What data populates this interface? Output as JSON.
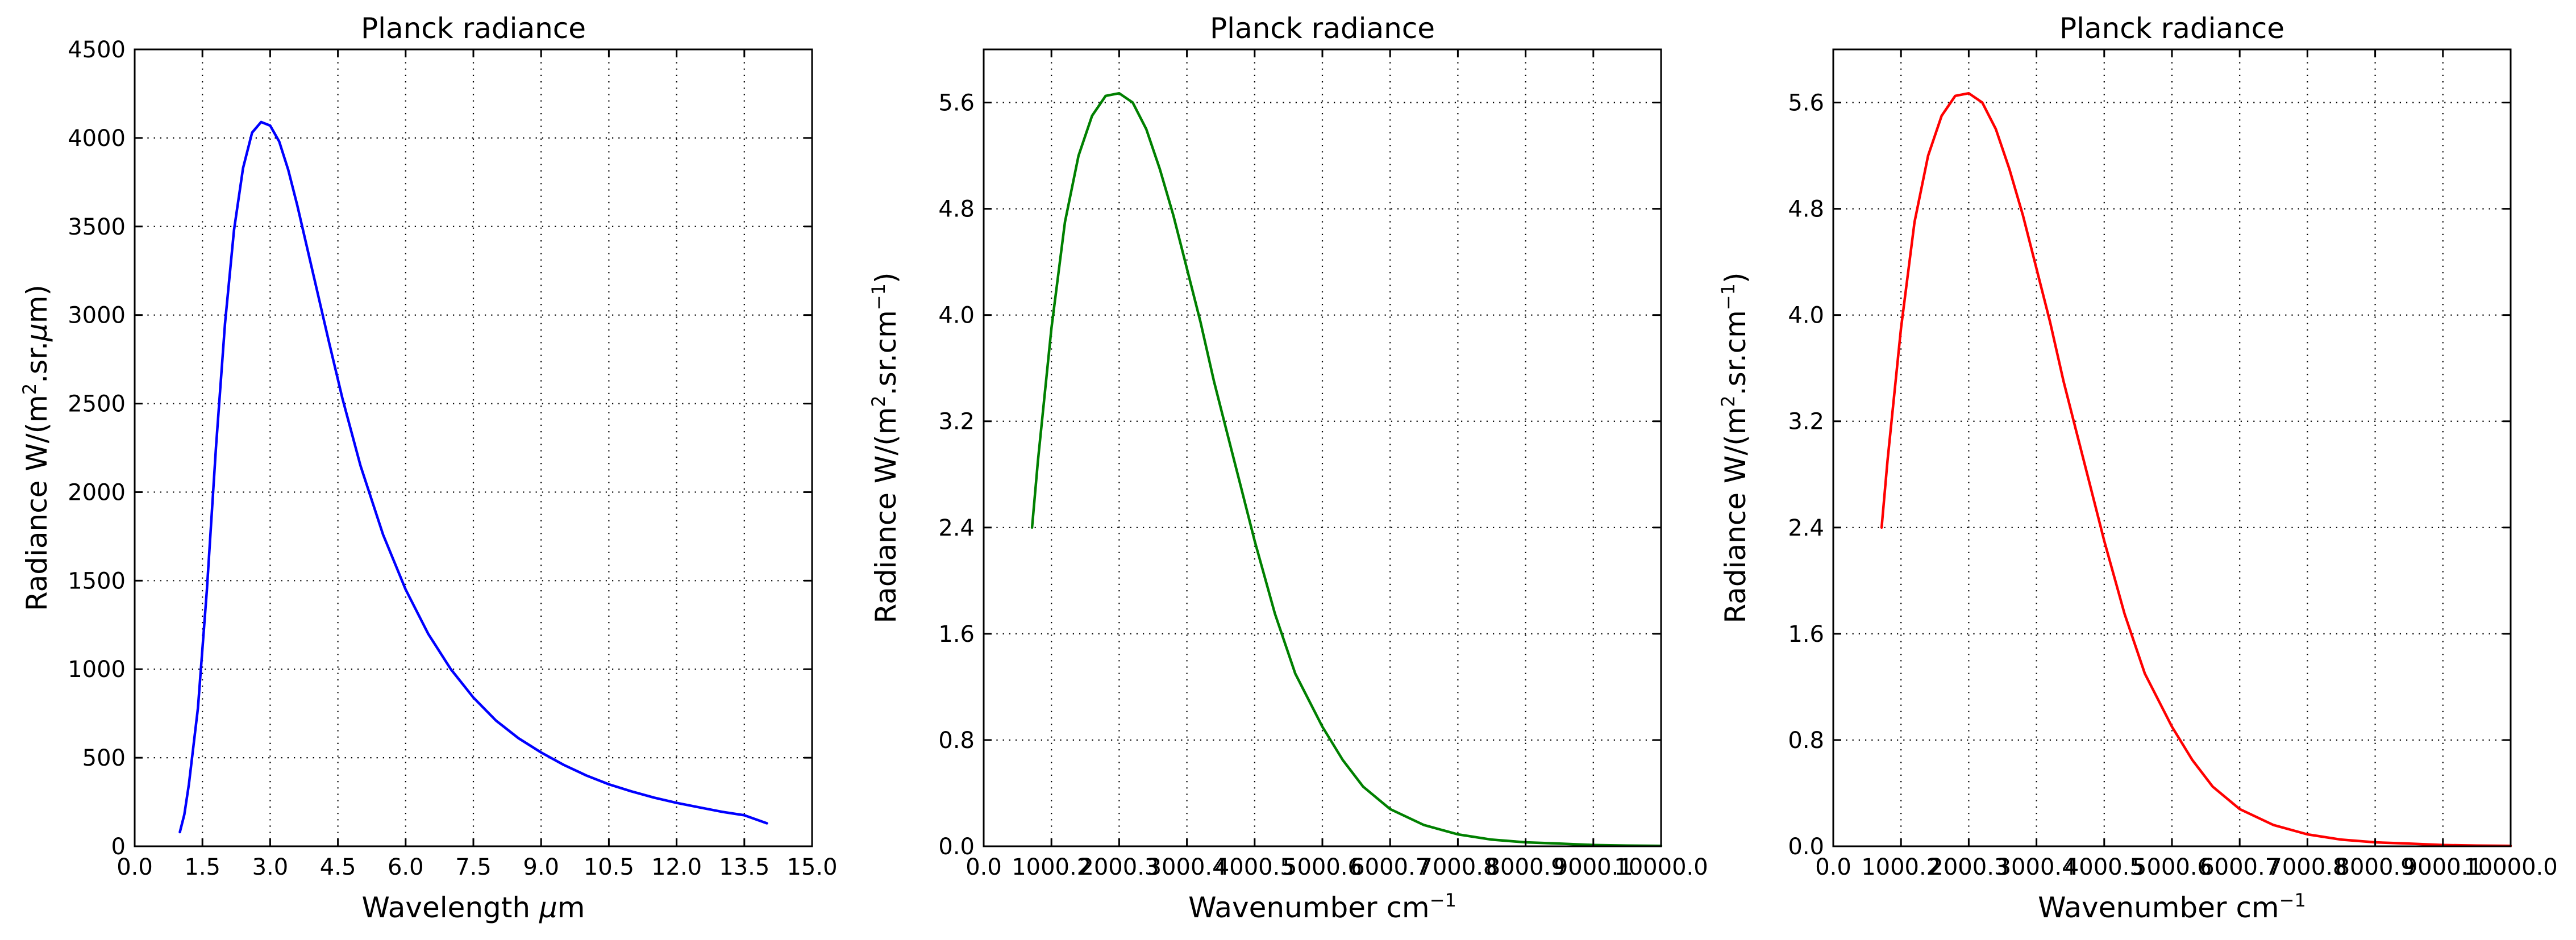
{
  "chart_data": [
    {
      "type": "line",
      "title": "Planck radiance",
      "xlabel": "Wavelength μm",
      "xlabel_parts": [
        "Wavelength ",
        "μ",
        "m"
      ],
      "ylabel": "Radiance W/(m2.sr.μm)",
      "ylabel_parts": [
        "Radiance W/(m",
        "2",
        ".sr.",
        "μ",
        "m)"
      ],
      "xlim": [
        0,
        15
      ],
      "ylim": [
        0,
        4500
      ],
      "xticks": [
        0,
        1.5,
        3,
        4.5,
        6,
        7.5,
        9,
        10.5,
        12,
        13.5,
        15
      ],
      "xtick_labels": [
        "0.0",
        "1.5",
        "3.0",
        "4.5",
        "6.0",
        "7.5",
        "9.0",
        "10.5",
        "12.0",
        "13.5",
        "15.0"
      ],
      "yticks": [
        0,
        500,
        1000,
        1500,
        2000,
        2500,
        3000,
        3500,
        4000,
        4500
      ],
      "ytick_labels": [
        "0",
        "500",
        "1000",
        "1500",
        "2000",
        "2500",
        "3000",
        "3500",
        "4000",
        "4500"
      ],
      "grid": true,
      "color": "#0000ff",
      "series": [
        {
          "x": [
            1.0,
            1.1,
            1.2,
            1.4,
            1.6,
            1.8,
            2.0,
            2.2,
            2.4,
            2.6,
            2.8,
            3.0,
            3.2,
            3.4,
            3.6,
            3.8,
            4.0,
            4.3,
            4.6,
            5.0,
            5.5,
            6.0,
            6.5,
            7.0,
            7.5,
            8.0,
            8.5,
            9.0,
            9.5,
            10.0,
            10.5,
            11.0,
            11.5,
            12.0,
            12.5,
            13.0,
            13.5,
            14.0
          ],
          "y": [
            80,
            180,
            350,
            780,
            1450,
            2250,
            2950,
            3480,
            3830,
            4030,
            4090,
            4070,
            3980,
            3820,
            3620,
            3400,
            3180,
            2850,
            2530,
            2150,
            1760,
            1450,
            1200,
            1000,
            840,
            710,
            610,
            530,
            460,
            400,
            350,
            310,
            275,
            245,
            220,
            195,
            175,
            130
          ]
        }
      ]
    },
    {
      "type": "line",
      "title": "Planck radiance",
      "xlabel": "Wavenumber cm−1",
      "xlabel_parts": [
        "Wavenumber cm",
        "−1"
      ],
      "ylabel": "Radiance W/(m2.sr.cm−1)",
      "ylabel_parts": [
        "Radiance W/(m",
        "2",
        ".sr.cm",
        "−1",
        ")"
      ],
      "xlim": [
        0,
        10000
      ],
      "ylim": [
        0,
        6
      ],
      "xticks": [
        0,
        1000,
        2000,
        3000,
        4000,
        5000,
        6000,
        7000,
        8000,
        9000,
        10000
      ],
      "xtick_labels": [
        "0.0",
        "1000.2",
        "2000.3",
        "3000.4",
        "4000.5",
        "5000.6",
        "6000.7",
        "7000.8",
        "8000.9",
        "9000.1",
        "10000.0"
      ],
      "yticks": [
        0,
        0.8,
        1.6,
        2.4,
        3.2,
        4.0,
        4.8,
        5.6
      ],
      "ytick_labels": [
        "0.0",
        "0.8",
        "1.6",
        "2.4",
        "3.2",
        "4.0",
        "4.8",
        "5.6"
      ],
      "grid": true,
      "color": "#008000",
      "series": [
        {
          "x": [
            714,
            800,
            1000,
            1200,
            1400,
            1600,
            1800,
            2000,
            2200,
            2400,
            2600,
            2800,
            3000,
            3200,
            3400,
            3600,
            3800,
            4000,
            4300,
            4600,
            5000,
            5300,
            5600,
            6000,
            6500,
            7000,
            7500,
            8000,
            8500,
            9000,
            9500,
            10000
          ],
          "y": [
            2.4,
            2.9,
            3.9,
            4.7,
            5.2,
            5.5,
            5.65,
            5.67,
            5.6,
            5.4,
            5.1,
            4.75,
            4.35,
            3.95,
            3.5,
            3.1,
            2.7,
            2.3,
            1.75,
            1.3,
            0.9,
            0.65,
            0.45,
            0.28,
            0.16,
            0.09,
            0.05,
            0.03,
            0.02,
            0.01,
            0.005,
            0.003
          ]
        }
      ]
    },
    {
      "type": "line",
      "title": "Planck radiance",
      "xlabel": "Wavenumber cm−1",
      "xlabel_parts": [
        "Wavenumber cm",
        "−1"
      ],
      "ylabel": "Radiance W/(m2.sr.cm−1)",
      "ylabel_parts": [
        "Radiance W/(m",
        "2",
        ".sr.cm",
        "−1",
        ")"
      ],
      "xlim": [
        0,
        10000
      ],
      "ylim": [
        0,
        6
      ],
      "xticks": [
        0,
        1000,
        2000,
        3000,
        4000,
        5000,
        6000,
        7000,
        8000,
        9000,
        10000
      ],
      "xtick_labels": [
        "0.0",
        "1000.2",
        "2000.3",
        "3000.4",
        "4000.5",
        "5000.6",
        "6000.7",
        "7000.8",
        "8000.9",
        "9000.1",
        "10000.0"
      ],
      "yticks": [
        0,
        0.8,
        1.6,
        2.4,
        3.2,
        4.0,
        4.8,
        5.6
      ],
      "ytick_labels": [
        "0.0",
        "0.8",
        "1.6",
        "2.4",
        "3.2",
        "4.0",
        "4.8",
        "5.6"
      ],
      "grid": true,
      "color": "#ff0000",
      "series": [
        {
          "x": [
            714,
            800,
            1000,
            1200,
            1400,
            1600,
            1800,
            2000,
            2200,
            2400,
            2600,
            2800,
            3000,
            3200,
            3400,
            3600,
            3800,
            4000,
            4300,
            4600,
            5000,
            5300,
            5600,
            6000,
            6500,
            7000,
            7500,
            8000,
            8500,
            9000,
            9500,
            10000
          ],
          "y": [
            2.4,
            2.9,
            3.9,
            4.7,
            5.2,
            5.5,
            5.65,
            5.67,
            5.6,
            5.4,
            5.1,
            4.75,
            4.35,
            3.95,
            3.5,
            3.1,
            2.7,
            2.3,
            1.75,
            1.3,
            0.9,
            0.65,
            0.45,
            0.28,
            0.16,
            0.09,
            0.05,
            0.03,
            0.02,
            0.01,
            0.005,
            0.003
          ]
        }
      ]
    }
  ]
}
